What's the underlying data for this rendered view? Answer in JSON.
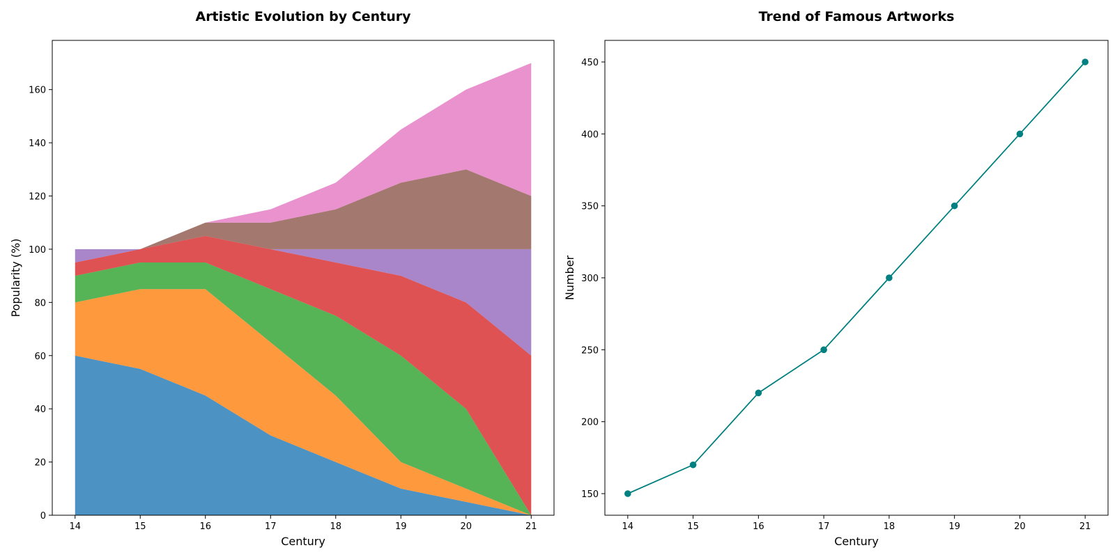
{
  "chart_data": [
    {
      "type": "area",
      "title": "Artistic Evolution by Century",
      "xlabel": "Century",
      "ylabel": "Popularity (%)",
      "x": [
        14,
        15,
        16,
        17,
        18,
        19,
        20,
        21
      ],
      "xlim": [
        13.65,
        21.35
      ],
      "ylim": [
        0,
        178.5
      ],
      "yticks": [
        0,
        20,
        40,
        60,
        80,
        100,
        120,
        140,
        160
      ],
      "grid": false,
      "stacked": true,
      "series": [
        {
          "color": "#1f77b4",
          "values": [
            60,
            55,
            45,
            30,
            20,
            10,
            5,
            0
          ]
        },
        {
          "color": "#ff7f0e",
          "values": [
            20,
            30,
            40,
            35,
            25,
            10,
            5,
            0
          ]
        },
        {
          "color": "#2ca02c",
          "values": [
            10,
            10,
            10,
            20,
            30,
            40,
            30,
            0
          ]
        },
        {
          "color": "#d62728",
          "values": [
            5,
            5,
            10,
            15,
            20,
            30,
            40,
            60
          ]
        },
        {
          "color": "#9467bd",
          "values": [
            5,
            0,
            0,
            0,
            5,
            10,
            20,
            40
          ]
        },
        {
          "color": "#8c564b",
          "values": [
            0,
            0,
            5,
            10,
            15,
            25,
            30,
            20
          ]
        },
        {
          "color": "#e377c2",
          "values": [
            0,
            0,
            0,
            5,
            10,
            20,
            30,
            50
          ]
        }
      ]
    },
    {
      "type": "line",
      "title": "Trend of Famous Artworks",
      "xlabel": "Century",
      "ylabel": "Number",
      "x": [
        14,
        15,
        16,
        17,
        18,
        19,
        20,
        21
      ],
      "xlim": [
        13.65,
        21.35
      ],
      "ylim": [
        135,
        465
      ],
      "yticks": [
        150,
        200,
        250,
        300,
        350,
        400,
        450
      ],
      "grid": false,
      "series": [
        {
          "color": "#008080",
          "marker": "circle",
          "values": [
            150,
            170,
            220,
            250,
            300,
            350,
            400,
            450
          ]
        }
      ]
    }
  ]
}
